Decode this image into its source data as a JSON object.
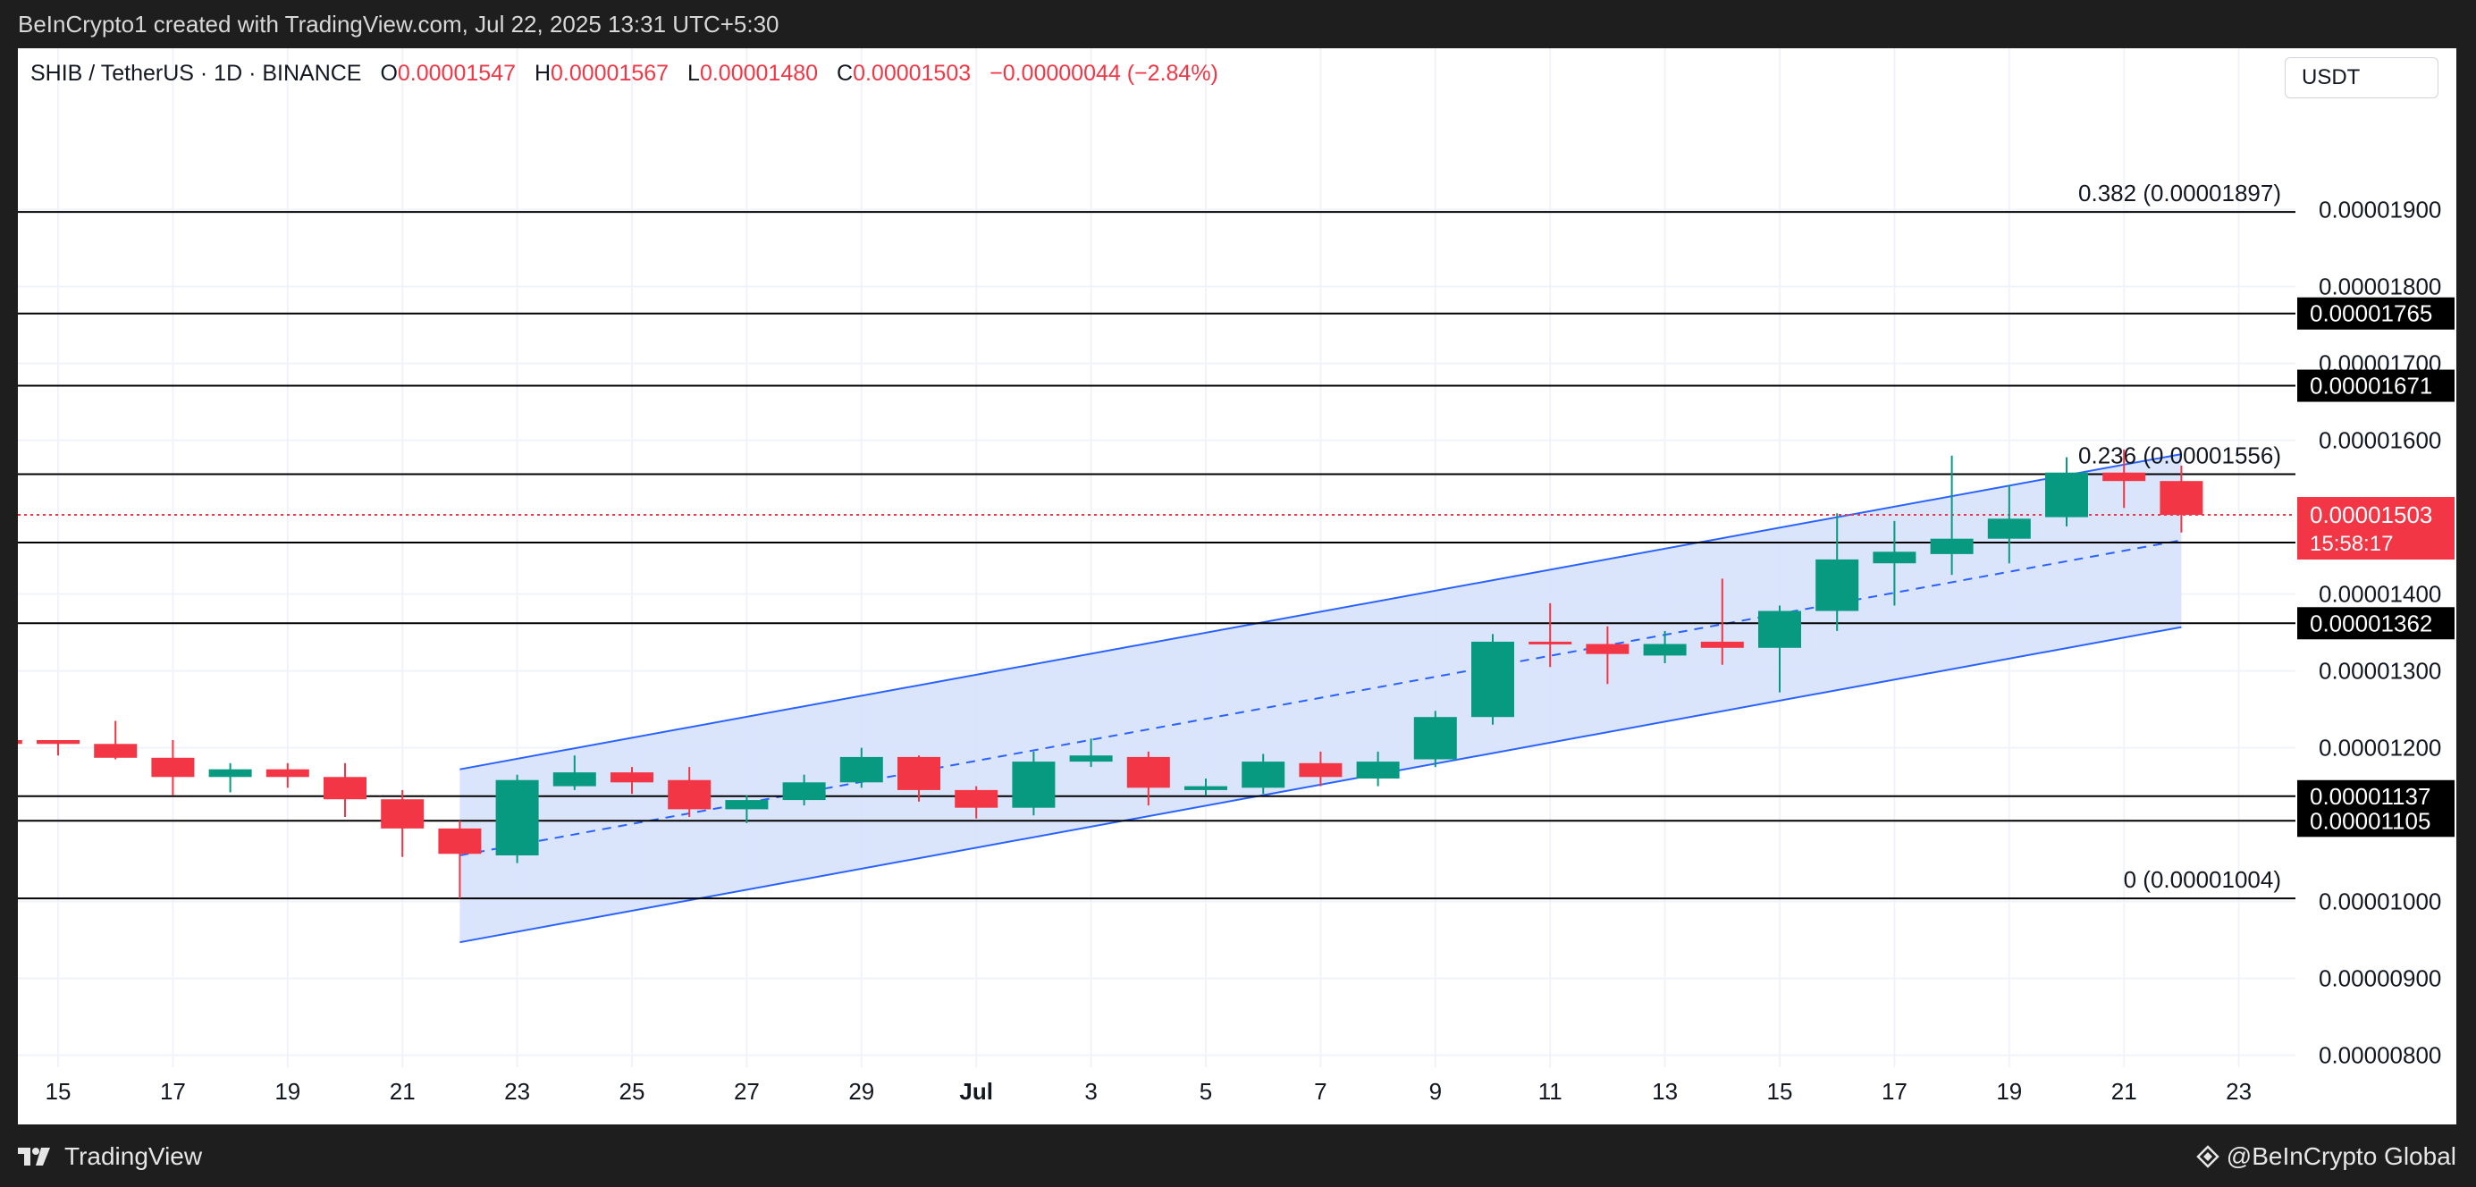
{
  "header": {
    "credit": "BeInCrypto1 created with TradingView.com, Jul 22, 2025 13:31 UTC+5:30"
  },
  "legend": {
    "symbol": "SHIB / TetherUS · 1D · BINANCE",
    "open_label": "O",
    "open": "0.00001547",
    "high_label": "H",
    "high": "0.00001567",
    "low_label": "L",
    "low": "0.00001480",
    "close_label": "C",
    "close": "0.00001503",
    "change": "−0.00000044 (−2.84%)"
  },
  "currency_button": "USDT",
  "footer": {
    "brand": "TradingView",
    "watermark": "@BeInCrypto Global"
  },
  "colors": {
    "up": "#089981",
    "down": "#f23645",
    "channel_line": "#2962ff",
    "channel_fill": "#d6e1fb",
    "level_line": "#000000",
    "price_label_bg": "#000000",
    "current_price_bg": "#f23645"
  },
  "chart_data": {
    "type": "candlestick",
    "pair": "SHIB / TetherUS",
    "interval": "1D",
    "exchange": "BINANCE",
    "y_unit": "USDT",
    "ylim": [
      7.1e-06,
      2.11e-05
    ],
    "x_tick_labels": [
      "15",
      "17",
      "19",
      "21",
      "23",
      "25",
      "27",
      "29",
      "Jul",
      "3",
      "5",
      "7",
      "9",
      "11",
      "13",
      "15",
      "17",
      "19",
      "21",
      "23"
    ],
    "y_tick_labels": [
      "0.00001900",
      "0.00001800",
      "0.00001700",
      "0.00001600",
      "0.00001400",
      "0.00001300",
      "0.00001200",
      "0.00001000",
      "0.00000900",
      "0.00000800"
    ],
    "y_tick_values": [
      1.9e-05,
      1.8e-05,
      1.7e-05,
      1.6e-05,
      1.4e-05,
      1.3e-05,
      1.2e-05,
      1e-05,
      9e-06,
      8e-06
    ],
    "candles": [
      {
        "date": "2025-06-14",
        "open": 1.21e-05,
        "high": 1.215e-05,
        "low": 1.195e-05,
        "close": 1.205e-05
      },
      {
        "date": "2025-06-15",
        "open": 1.21e-05,
        "high": 1.21e-05,
        "low": 1.19e-05,
        "close": 1.205e-05
      },
      {
        "date": "2025-06-16",
        "open": 1.205e-05,
        "high": 1.235e-05,
        "low": 1.185e-05,
        "close": 1.187e-05
      },
      {
        "date": "2025-06-17",
        "open": 1.187e-05,
        "high": 1.21e-05,
        "low": 1.138e-05,
        "close": 1.162e-05
      },
      {
        "date": "2025-06-18",
        "open": 1.162e-05,
        "high": 1.18e-05,
        "low": 1.142e-05,
        "close": 1.172e-05
      },
      {
        "date": "2025-06-19",
        "open": 1.172e-05,
        "high": 1.18e-05,
        "low": 1.148e-05,
        "close": 1.162e-05
      },
      {
        "date": "2025-06-20",
        "open": 1.162e-05,
        "high": 1.18e-05,
        "low": 1.11e-05,
        "close": 1.133e-05
      },
      {
        "date": "2025-06-21",
        "open": 1.133e-05,
        "high": 1.145e-05,
        "low": 1.058e-05,
        "close": 1.095e-05
      },
      {
        "date": "2025-06-22",
        "open": 1.095e-05,
        "high": 1.105e-05,
        "low": 1.004e-05,
        "close": 1.062e-05
      },
      {
        "date": "2025-06-23",
        "open": 1.06e-05,
        "high": 1.165e-05,
        "low": 1.05e-05,
        "close": 1.158e-05
      },
      {
        "date": "2025-06-24",
        "open": 1.15e-05,
        "high": 1.19e-05,
        "low": 1.145e-05,
        "close": 1.168e-05
      },
      {
        "date": "2025-06-25",
        "open": 1.168e-05,
        "high": 1.175e-05,
        "low": 1.14e-05,
        "close": 1.155e-05
      },
      {
        "date": "2025-06-26",
        "open": 1.158e-05,
        "high": 1.175e-05,
        "low": 1.11e-05,
        "close": 1.12e-05
      },
      {
        "date": "2025-06-27",
        "open": 1.12e-05,
        "high": 1.138e-05,
        "low": 1.102e-05,
        "close": 1.132e-05
      },
      {
        "date": "2025-06-28",
        "open": 1.132e-05,
        "high": 1.165e-05,
        "low": 1.125e-05,
        "close": 1.155e-05
      },
      {
        "date": "2025-06-29",
        "open": 1.155e-05,
        "high": 1.2e-05,
        "low": 1.148e-05,
        "close": 1.188e-05
      },
      {
        "date": "2025-06-30",
        "open": 1.188e-05,
        "high": 1.19e-05,
        "low": 1.13e-05,
        "close": 1.145e-05
      },
      {
        "date": "2025-07-01",
        "open": 1.145e-05,
        "high": 1.15e-05,
        "low": 1.108e-05,
        "close": 1.122e-05
      },
      {
        "date": "2025-07-02",
        "open": 1.122e-05,
        "high": 1.195e-05,
        "low": 1.112e-05,
        "close": 1.182e-05
      },
      {
        "date": "2025-07-03",
        "open": 1.182e-05,
        "high": 1.212e-05,
        "low": 1.175e-05,
        "close": 1.19e-05
      },
      {
        "date": "2025-07-04",
        "open": 1.188e-05,
        "high": 1.195e-05,
        "low": 1.125e-05,
        "close": 1.148e-05
      },
      {
        "date": "2025-07-05",
        "open": 1.145e-05,
        "high": 1.16e-05,
        "low": 1.138e-05,
        "close": 1.15e-05
      },
      {
        "date": "2025-07-06",
        "open": 1.148e-05,
        "high": 1.192e-05,
        "low": 1.14e-05,
        "close": 1.182e-05
      },
      {
        "date": "2025-07-07",
        "open": 1.18e-05,
        "high": 1.195e-05,
        "low": 1.15e-05,
        "close": 1.162e-05
      },
      {
        "date": "2025-07-08",
        "open": 1.16e-05,
        "high": 1.195e-05,
        "low": 1.15e-05,
        "close": 1.182e-05
      },
      {
        "date": "2025-07-09",
        "open": 1.185e-05,
        "high": 1.248e-05,
        "low": 1.175e-05,
        "close": 1.24e-05
      },
      {
        "date": "2025-07-10",
        "open": 1.24e-05,
        "high": 1.348e-05,
        "low": 1.23e-05,
        "close": 1.338e-05
      },
      {
        "date": "2025-07-11",
        "open": 1.338e-05,
        "high": 1.388e-05,
        "low": 1.305e-05,
        "close": 1.335e-05
      },
      {
        "date": "2025-07-12",
        "open": 1.335e-05,
        "high": 1.358e-05,
        "low": 1.283e-05,
        "close": 1.322e-05
      },
      {
        "date": "2025-07-13",
        "open": 1.32e-05,
        "high": 1.352e-05,
        "low": 1.31e-05,
        "close": 1.335e-05
      },
      {
        "date": "2025-07-14",
        "open": 1.338e-05,
        "high": 1.42e-05,
        "low": 1.308e-05,
        "close": 1.33e-05
      },
      {
        "date": "2025-07-15",
        "open": 1.33e-05,
        "high": 1.385e-05,
        "low": 1.272e-05,
        "close": 1.378e-05
      },
      {
        "date": "2025-07-16",
        "open": 1.378e-05,
        "high": 1.505e-05,
        "low": 1.352e-05,
        "close": 1.445e-05
      },
      {
        "date": "2025-07-17",
        "open": 1.44e-05,
        "high": 1.495e-05,
        "low": 1.385e-05,
        "close": 1.455e-05
      },
      {
        "date": "2025-07-18",
        "open": 1.452e-05,
        "high": 1.58e-05,
        "low": 1.425e-05,
        "close": 1.472e-05
      },
      {
        "date": "2025-07-19",
        "open": 1.472e-05,
        "high": 1.542e-05,
        "low": 1.44e-05,
        "close": 1.498e-05
      },
      {
        "date": "2025-07-20",
        "open": 1.5e-05,
        "high": 1.578e-05,
        "low": 1.488e-05,
        "close": 1.558e-05
      },
      {
        "date": "2025-07-21",
        "open": 1.558e-05,
        "high": 1.588e-05,
        "low": 1.512e-05,
        "close": 1.547e-05
      },
      {
        "date": "2025-07-22",
        "open": 1.547e-05,
        "high": 1.567e-05,
        "low": 1.48e-05,
        "close": 1.503e-05
      }
    ],
    "horizontal_levels": [
      {
        "label": "0.382 (0.00001897)",
        "value": 1.897e-05,
        "kind": "fib"
      },
      {
        "label": "0.00001765",
        "value": 1.765e-05,
        "kind": "level"
      },
      {
        "label": "0.00001671",
        "value": 1.671e-05,
        "kind": "level"
      },
      {
        "label": "0.236 (0.00001556)",
        "value": 1.556e-05,
        "kind": "fib"
      },
      {
        "label": "0.00001467",
        "value": 1.467e-05,
        "kind": "level"
      },
      {
        "label": "0.00001362",
        "value": 1.362e-05,
        "kind": "level"
      },
      {
        "label": "0.00001137",
        "value": 1.137e-05,
        "kind": "level"
      },
      {
        "label": "0.00001105",
        "value": 1.105e-05,
        "kind": "level"
      },
      {
        "label": "0 (0.00001004)",
        "value": 1.004e-05,
        "kind": "fib"
      }
    ],
    "current_price": {
      "value": 1.503e-05,
      "label": "0.00001503",
      "countdown": "15:58:17"
    },
    "channel": {
      "start_date": "2025-06-22",
      "end_date": "2025-07-22",
      "upper": [
        1.172e-05,
        1.582e-05
      ],
      "lower": [
        9.47e-06,
        1.357e-05
      ],
      "middle": [
        1.06e-05,
        1.47e-05
      ]
    }
  }
}
